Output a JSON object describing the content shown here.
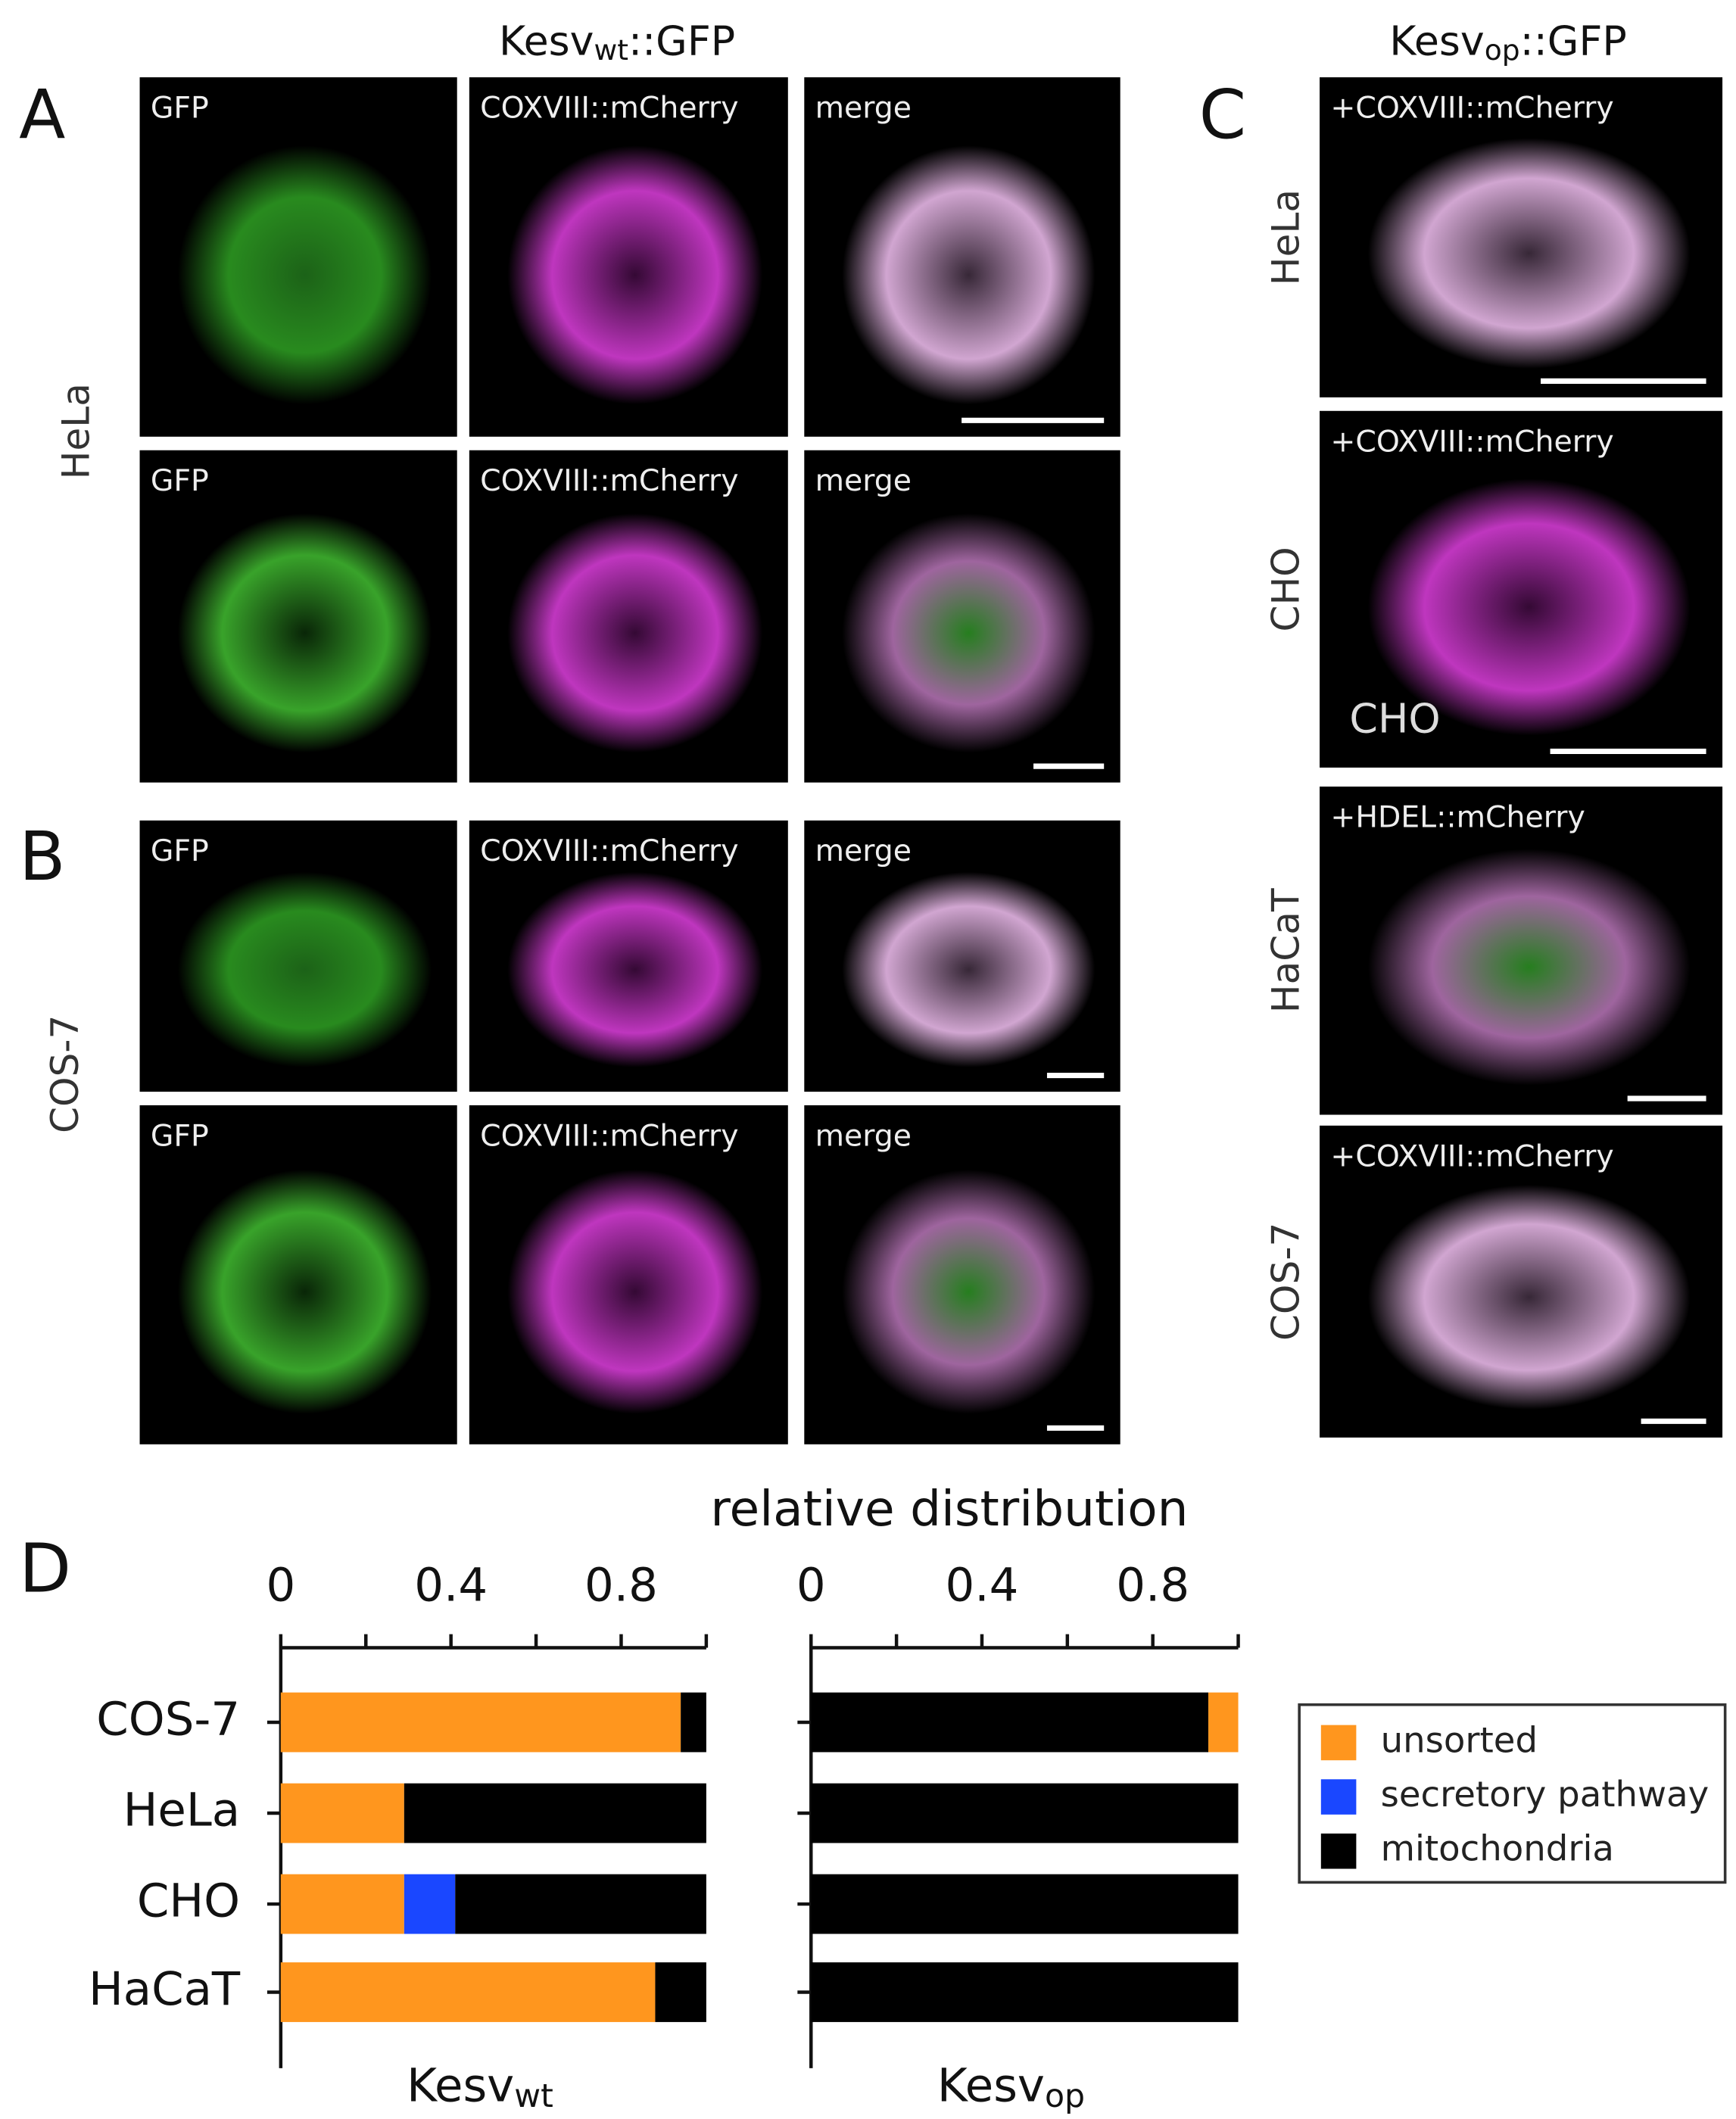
{
  "headings": {
    "wt": {
      "stem": "Kesv",
      "sub": "wt",
      "suffix": "::GFP"
    },
    "op": {
      "stem": "Kesv",
      "sub": "op",
      "suffix": "::GFP"
    }
  },
  "panels": {
    "A": {
      "label": "A",
      "row_label": "HeLa",
      "images": [
        [
          "GFP",
          "COXVIII::mCherry",
          "merge"
        ],
        [
          "GFP",
          "COXVIII::mCherry",
          "merge"
        ]
      ]
    },
    "B": {
      "label": "B",
      "row_label": "COS-7",
      "images": [
        [
          "GFP",
          "COXVIII::mCherry",
          "merge"
        ],
        [
          "GFP",
          "COXVIII::mCherry",
          "merge"
        ]
      ]
    },
    "C": {
      "label": "C",
      "images": [
        {
          "label": "+COXVIII::mCherry",
          "row_label": "HeLa"
        },
        {
          "label": "+COXVIII::mCherry",
          "row_label": "CHO",
          "inset": "CHO"
        },
        {
          "label": "+HDEL::mCherry",
          "row_label": "HaCaT"
        },
        {
          "label": "+COXVIII::mCherry",
          "row_label": "COS-7"
        }
      ]
    },
    "D": {
      "label": "D",
      "axis_title": "relative distribution"
    }
  },
  "chart_data": [
    {
      "type": "bar",
      "orientation": "horizontal",
      "stacked": true,
      "xaxis_position": "top",
      "xlabel": {
        "stem": "Kesv",
        "sub": "wt"
      },
      "categories": [
        "COS-7",
        "HeLa",
        "CHO",
        "HaCaT"
      ],
      "series": [
        {
          "name": "unsorted",
          "color": "#ff961e",
          "values": [
            0.94,
            0.29,
            0.29,
            0.88
          ]
        },
        {
          "name": "secretory pathway",
          "color": "#1a47ff",
          "values": [
            0,
            0,
            0.12,
            0
          ]
        },
        {
          "name": "mitochondria",
          "color": "#000000",
          "values": [
            0.06,
            0.71,
            0.59,
            0.12
          ]
        }
      ],
      "xlim": [
        0,
        1
      ],
      "xticks": [
        0,
        0.4,
        0.8
      ],
      "xminor_ticks": [
        0.2,
        0.6,
        1.0
      ],
      "legend": "right"
    },
    {
      "type": "bar",
      "orientation": "horizontal",
      "stacked": true,
      "xaxis_position": "top",
      "xlabel": {
        "stem": "Kesv",
        "sub": "op"
      },
      "categories": [
        null,
        null,
        null,
        null
      ],
      "series": [
        {
          "name": "mitochondria",
          "color": "#000000",
          "values": [
            0.93,
            1,
            1,
            1
          ]
        },
        {
          "name": "unsorted",
          "color": "#ff961e",
          "values": [
            0.07,
            0,
            0,
            0
          ]
        }
      ],
      "xlim": [
        0,
        1
      ],
      "xticks": [
        0,
        0.4,
        0.8
      ],
      "xminor_ticks": [
        0.2,
        0.6,
        1.0
      ]
    }
  ]
}
